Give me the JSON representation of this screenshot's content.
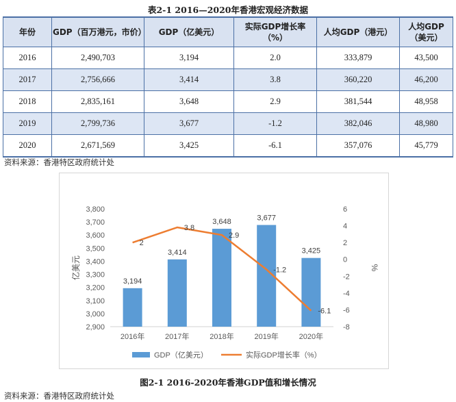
{
  "table_title": "表2-1    2016—2020年香港宏观经济数据",
  "table": {
    "headers": [
      "年份",
      "GDP（百万港元，市价）",
      "GDP（亿美元）",
      "实际GDP增长率（%）",
      "人均GDP（港元）",
      "人均GDP（美元）"
    ],
    "rows": [
      [
        "2016",
        "2,490,703",
        "3,194",
        "2.0",
        "333,879",
        "43,500"
      ],
      [
        "2017",
        "2,756,666",
        "3,414",
        "3.8",
        "360,220",
        "46,200"
      ],
      [
        "2018",
        "2,835,161",
        "3,648",
        "2.9",
        "381,544",
        "48,958"
      ],
      [
        "2019",
        "2,799,736",
        "3,677",
        "-1.2",
        "382,046",
        "48,980"
      ],
      [
        "2020",
        "2,671,569",
        "3,425",
        "-6.1",
        "357,076",
        "45,779"
      ]
    ]
  },
  "table_source": "资料来源：香港特区政府统计处",
  "colors": {
    "bar": "#5b9bd5",
    "line": "#ed7d31",
    "table_border": "#4a6fa5",
    "table_header_bg": "#d9e2f1"
  },
  "chart_data": {
    "type": "bar",
    "categories": [
      "2016年",
      "2017年",
      "2018年",
      "2019年",
      "2020年"
    ],
    "series": [
      {
        "name": "GDP（亿美元）",
        "type": "bar",
        "axis": "left",
        "values": [
          3194,
          3414,
          3648,
          3677,
          3425
        ]
      },
      {
        "name": "实际GDP增长率（%）",
        "type": "line",
        "axis": "right",
        "values": [
          2,
          3.8,
          2.9,
          -1.2,
          -6.1
        ]
      }
    ],
    "bar_labels": [
      "3,194",
      "3,414",
      "3,648",
      "3,677",
      "3,425"
    ],
    "line_labels": [
      "2",
      "3.8",
      "2.9",
      "-1.2",
      "-6.1"
    ],
    "ylabel": "亿美元",
    "y2label": "%",
    "ylim": [
      2900,
      3800
    ],
    "yticks": [
      "2,900",
      "3,000",
      "3,100",
      "3,200",
      "3,300",
      "3,400",
      "3,500",
      "3,600",
      "3,700",
      "3,800"
    ],
    "y2lim": [
      -8,
      6
    ],
    "y2ticks": [
      "-8",
      "-6",
      "-4",
      "-2",
      "0",
      "2",
      "4",
      "6"
    ],
    "legend_position": "bottom",
    "grid": false
  },
  "figure_caption": "图2-1    2016-2020年香港GDP值和增长情况",
  "figure_source": "资料来源：香港特区政府统计处"
}
